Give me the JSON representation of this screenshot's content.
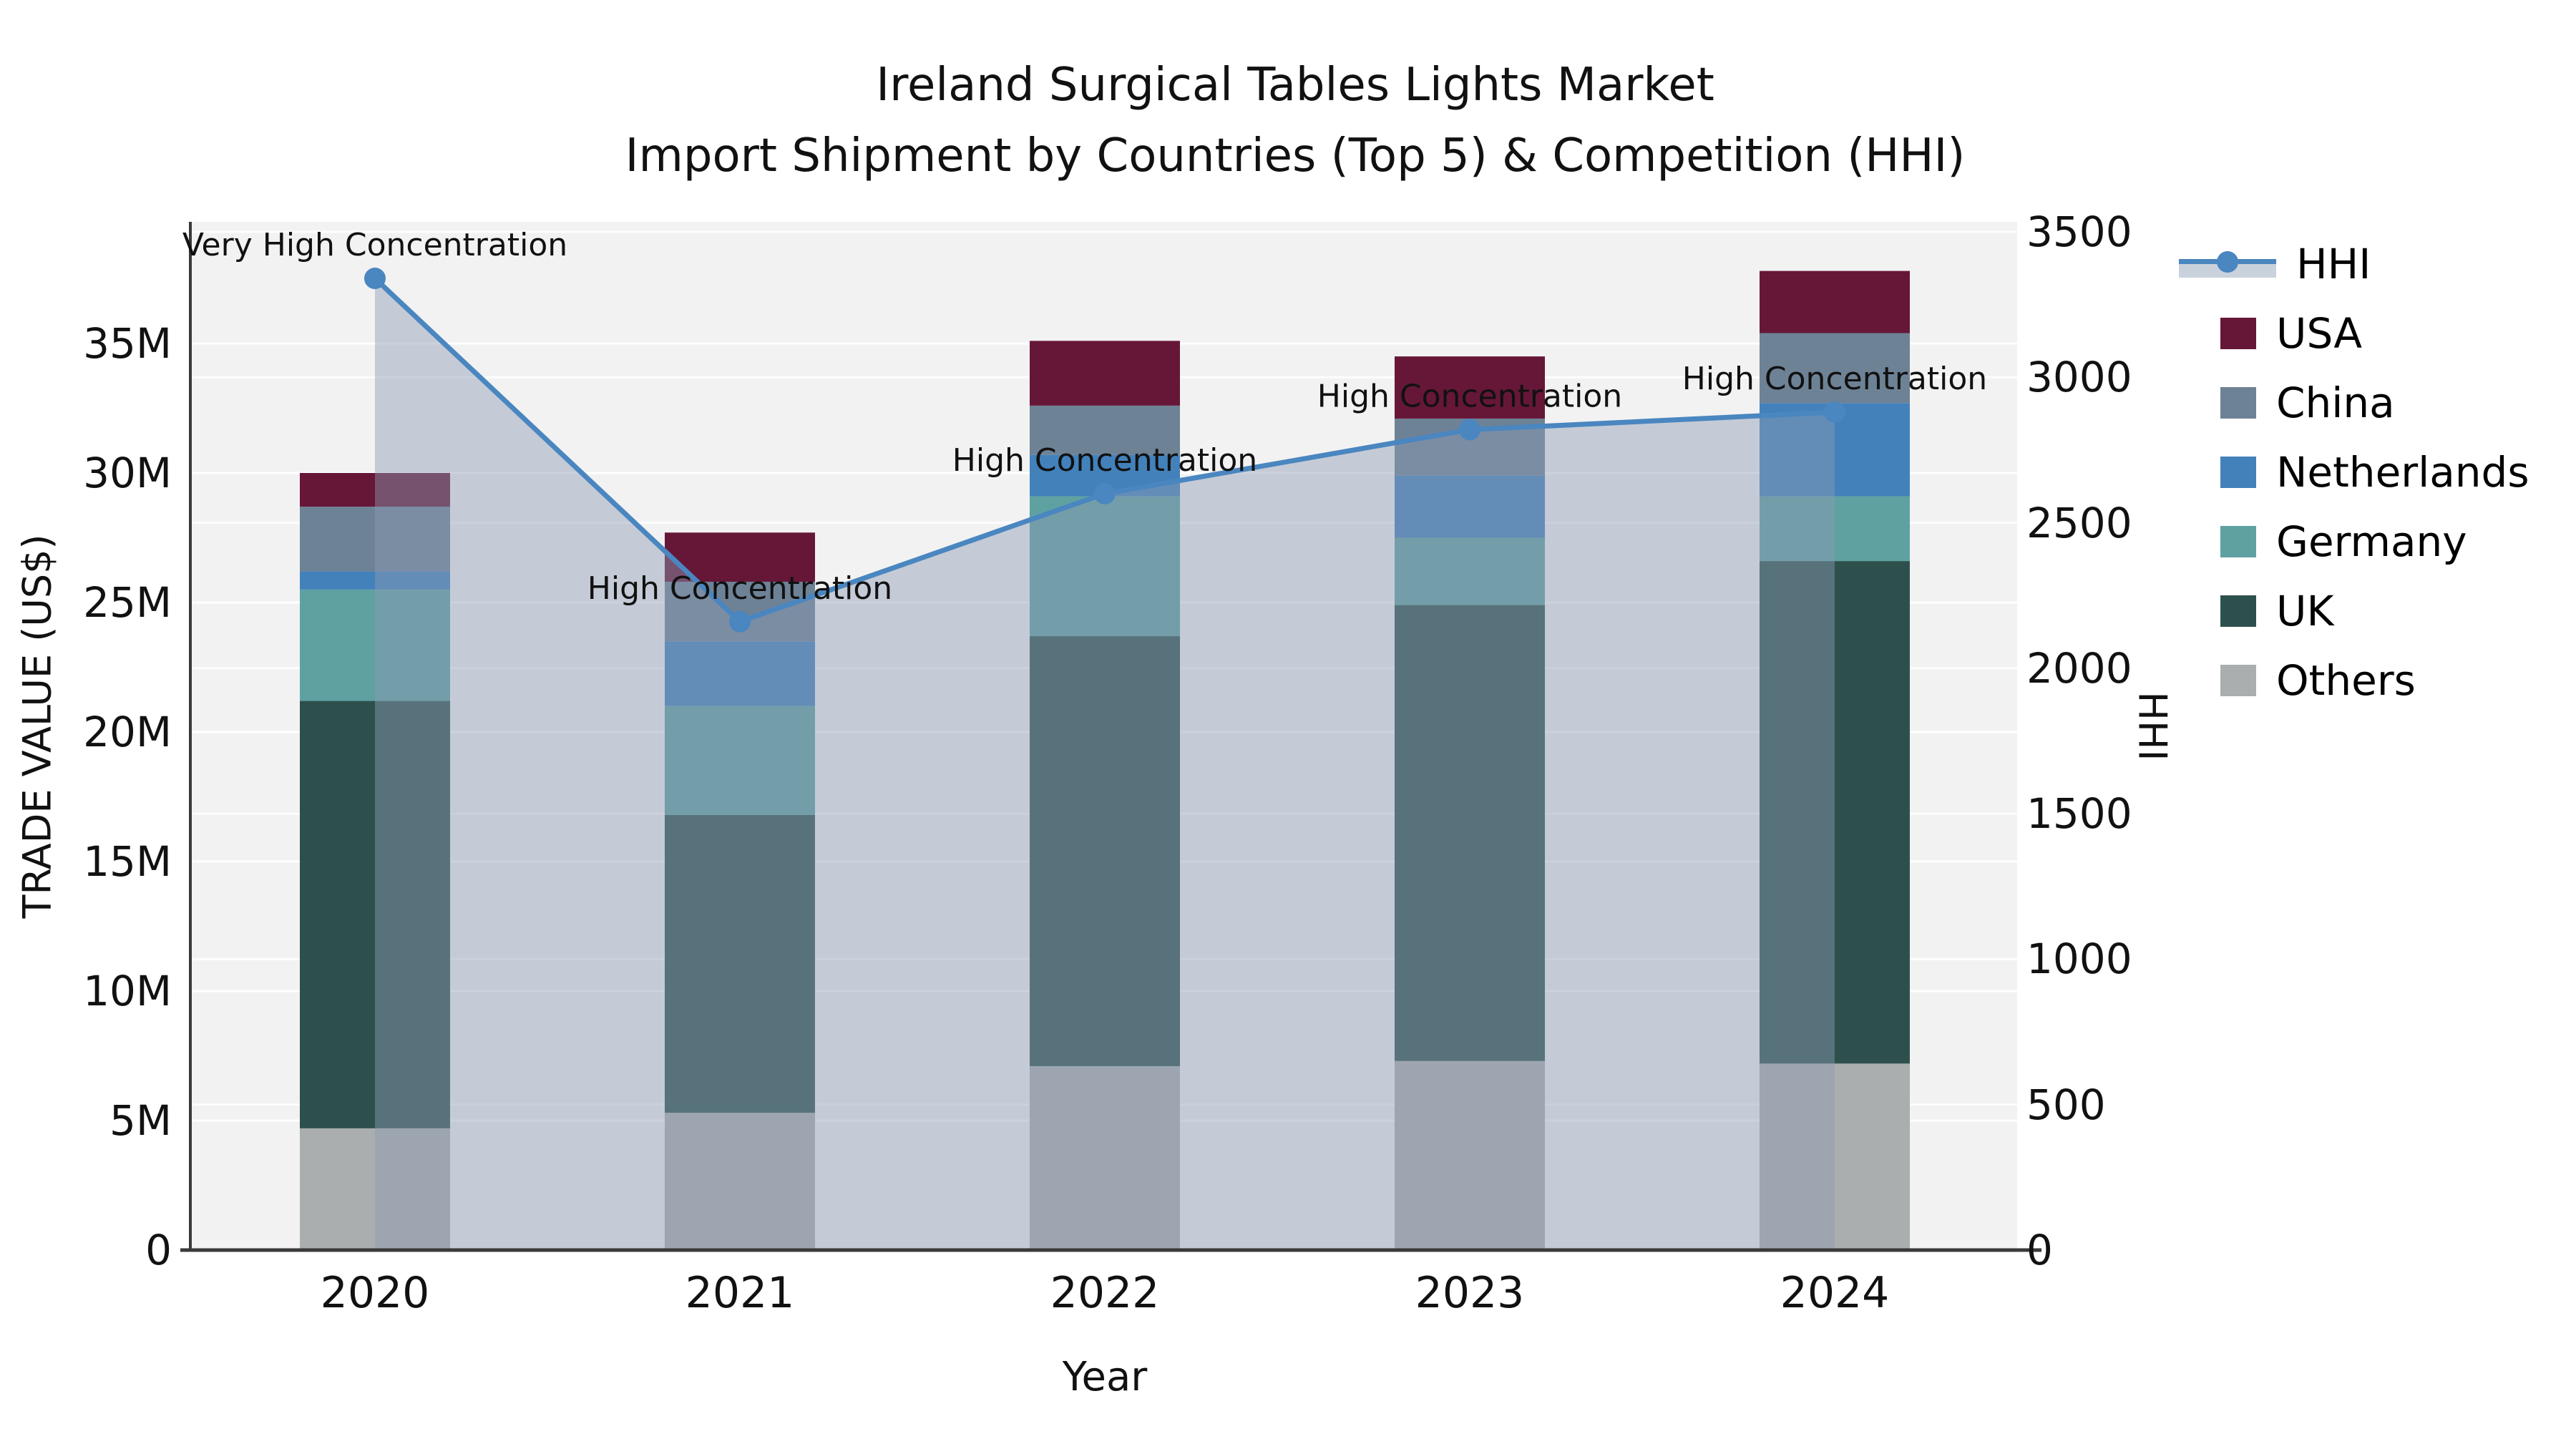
{
  "title": {
    "line1": "Ireland Surgical Tables Lights Market",
    "line2": "Import Shipment by Countries (Top 5) & Competition (HHI)"
  },
  "axes": {
    "x_title": "Year",
    "y_left_title": "TRADE VALUE (US$)",
    "y_right_title": "HHI",
    "x_ticks": [
      "2020",
      "2021",
      "2022",
      "2023",
      "2024"
    ],
    "y_left_ticks": [
      "0",
      "5M",
      "10M",
      "15M",
      "20M",
      "25M",
      "30M",
      "35M"
    ],
    "y_right_ticks": [
      "0",
      "500",
      "1000",
      "1500",
      "2000",
      "2500",
      "3000",
      "3500"
    ]
  },
  "legend": [
    {
      "label": "HHI",
      "type": "line",
      "color": "#4a86c0",
      "band": "#c9d1dc"
    },
    {
      "label": "USA",
      "type": "box",
      "color": "#661738"
    },
    {
      "label": "China",
      "type": "box",
      "color": "#6e8296"
    },
    {
      "label": "Netherlands",
      "type": "box",
      "color": "#4381bb"
    },
    {
      "label": "Germany",
      "type": "box",
      "color": "#5fa1a1"
    },
    {
      "label": "UK",
      "type": "box",
      "color": "#2d504d"
    },
    {
      "label": "Others",
      "type": "box",
      "color": "#abaeae"
    }
  ],
  "chart_data": {
    "type": "bar+line",
    "title": "Ireland Surgical Tables Lights Market — Import Shipment by Countries (Top 5) & Competition (HHI)",
    "xlabel": "Year",
    "ylabel_left": "TRADE VALUE (US$)",
    "ylabel_right": "HHI",
    "unit": "million US$",
    "categories": [
      "2020",
      "2021",
      "2022",
      "2023",
      "2024"
    ],
    "stack_order": [
      "Others",
      "UK",
      "Germany",
      "Netherlands",
      "China",
      "USA"
    ],
    "series": [
      {
        "name": "USA",
        "color": "#661738",
        "values_musd": [
          1.3,
          1.9,
          2.5,
          2.4,
          2.4
        ]
      },
      {
        "name": "China",
        "color": "#6e8296",
        "values_musd": [
          2.5,
          2.3,
          1.9,
          2.2,
          2.7
        ]
      },
      {
        "name": "Netherlands",
        "color": "#4381bb",
        "values_musd": [
          0.7,
          2.5,
          1.6,
          2.4,
          3.6
        ]
      },
      {
        "name": "Germany",
        "color": "#5fa1a1",
        "values_musd": [
          4.3,
          4.2,
          5.4,
          2.6,
          2.5
        ]
      },
      {
        "name": "UK",
        "color": "#2d504d",
        "values_musd": [
          16.5,
          11.5,
          16.6,
          17.6,
          19.4
        ]
      },
      {
        "name": "Others",
        "color": "#abaeae",
        "values_musd": [
          4.7,
          5.3,
          7.1,
          7.3,
          7.2
        ]
      }
    ],
    "totals_musd": [
      30.0,
      27.7,
      35.1,
      34.5,
      37.8
    ],
    "hhi": {
      "name": "HHI",
      "color": "#4a86c0",
      "area_fill": "rgba(140,156,180,0.45)",
      "values": [
        3340,
        2160,
        2600,
        2820,
        2880
      ]
    },
    "annotations": [
      {
        "category": "2020",
        "text": "Very High Concentration"
      },
      {
        "category": "2021",
        "text": "High Concentration"
      },
      {
        "category": "2022",
        "text": "High Concentration"
      },
      {
        "category": "2023",
        "text": "High Concentration"
      },
      {
        "category": "2024",
        "text": "High Concentration"
      }
    ],
    "ylim_left_musd": [
      0,
      39.7
    ],
    "ylim_right": [
      0,
      3535
    ],
    "grid": true,
    "legend_position": "outside-top-right",
    "style": {
      "plot_bg": "#f2f2f2",
      "grid_color": "#ffffff",
      "spine_color": "#3a3a3a",
      "annotation_color": "#111111"
    }
  }
}
